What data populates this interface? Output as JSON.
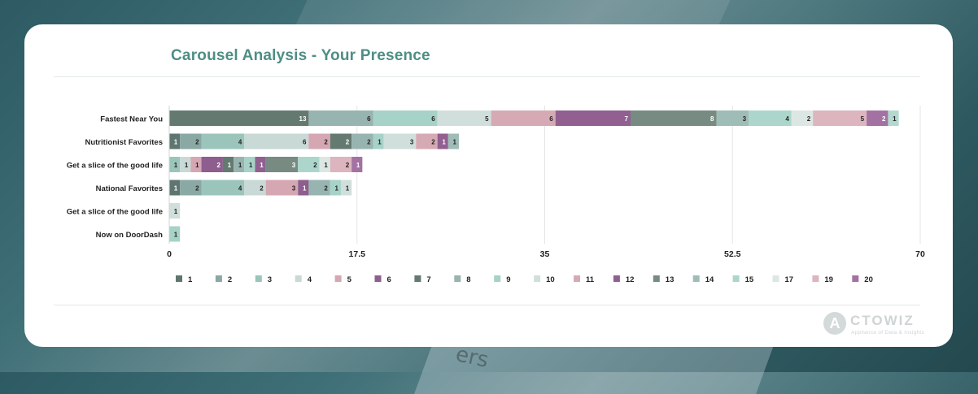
{
  "logo": {
    "letter": "A",
    "name": "CTOWIZ",
    "tagline": "Appliance of Data & Insights"
  },
  "background_text": "ers",
  "chart_data": {
    "type": "bar",
    "orientation": "horizontal",
    "stacked": true,
    "title": "Carousel Analysis - Your Presence",
    "xlabel": "",
    "ylabel": "",
    "xlim": [
      0,
      70
    ],
    "xticks": [
      "0",
      "17.5",
      "35",
      "52.5",
      "70"
    ],
    "grid": true,
    "legend_position": "bottom",
    "categories": [
      "Fastest Near You",
      "Nutritionist Favorites",
      "Get a slice of the good life",
      "National Favorites",
      "Get a slice of the good life",
      "Now on DoorDash"
    ],
    "series": [
      {
        "name": "1",
        "color": "#5f7670",
        "values": [
          0,
          1,
          0,
          1,
          0,
          0
        ]
      },
      {
        "name": "2",
        "color": "#8aa8a4",
        "values": [
          0,
          2,
          0,
          2,
          0,
          0
        ]
      },
      {
        "name": "3",
        "color": "#9bc5bb",
        "values": [
          0,
          4,
          1,
          4,
          0,
          0
        ]
      },
      {
        "name": "4",
        "color": "#c9d9d6",
        "values": [
          0,
          6,
          1,
          2,
          0,
          0
        ]
      },
      {
        "name": "5",
        "color": "#d5a7b3",
        "values": [
          0,
          2,
          1,
          3,
          0,
          0
        ]
      },
      {
        "name": "6",
        "color": "#8d5e8e",
        "values": [
          0,
          0,
          2,
          1,
          0,
          0
        ]
      },
      {
        "name": "7",
        "color": "#647a70",
        "values": [
          13,
          2,
          1,
          0,
          0,
          0
        ]
      },
      {
        "name": "8",
        "color": "#98b4b0",
        "values": [
          6,
          2,
          1,
          2,
          0,
          0
        ]
      },
      {
        "name": "9",
        "color": "#a6d2c7",
        "values": [
          6,
          1,
          1,
          1,
          0,
          1
        ]
      },
      {
        "name": "10",
        "color": "#d0dfdb",
        "values": [
          5,
          3,
          0,
          1,
          1,
          0
        ]
      },
      {
        "name": "11",
        "color": "#d6aab4",
        "values": [
          6,
          2,
          0,
          0,
          0,
          0
        ]
      },
      {
        "name": "12",
        "color": "#925f91",
        "values": [
          7,
          1,
          1,
          0,
          0,
          0
        ]
      },
      {
        "name": "13",
        "color": "#778b83",
        "values": [
          8,
          0,
          3,
          0,
          0,
          0
        ]
      },
      {
        "name": "14",
        "color": "#9fbcb7",
        "values": [
          3,
          1,
          0,
          0,
          0,
          0
        ]
      },
      {
        "name": "15",
        "color": "#acd6cb",
        "values": [
          4,
          0,
          2,
          0,
          0,
          0
        ]
      },
      {
        "name": "17",
        "color": "#dce7e4",
        "values": [
          2,
          0,
          1,
          0,
          0,
          0
        ]
      },
      {
        "name": "19",
        "color": "#dcb5be",
        "values": [
          5,
          0,
          2,
          0,
          0,
          0
        ]
      },
      {
        "name": "20",
        "color": "#a472a2",
        "values": [
          2,
          0,
          1,
          0,
          0,
          0
        ]
      },
      {
        "name": "",
        "color": "#b3d9cf",
        "values": [
          1,
          0,
          0,
          0,
          0,
          0
        ]
      }
    ]
  }
}
